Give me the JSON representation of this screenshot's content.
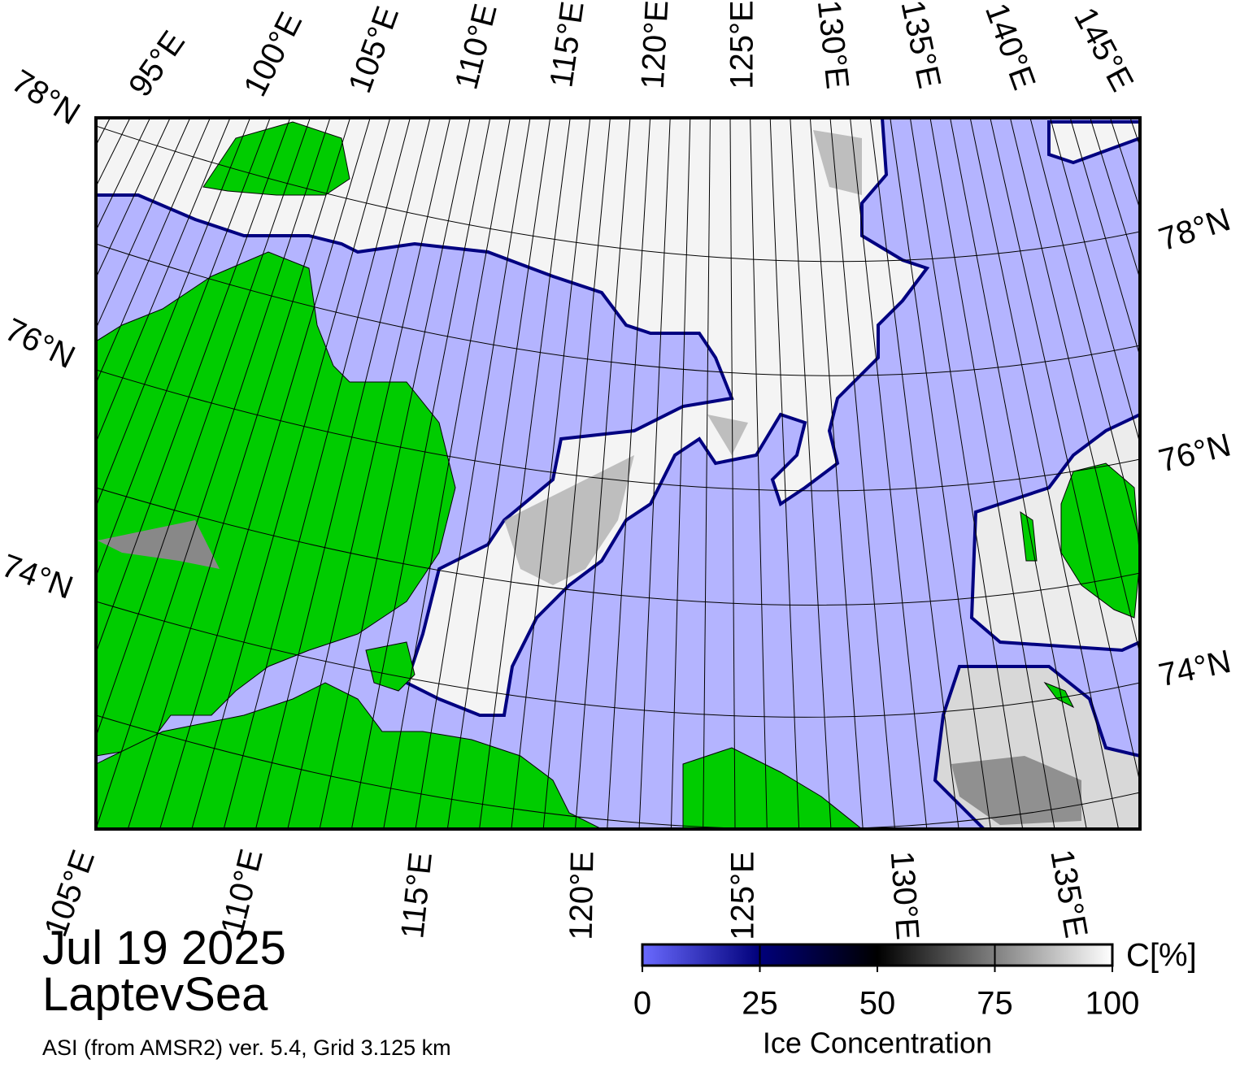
{
  "map": {
    "top_labels": [
      "95°E",
      "100°E",
      "105°E",
      "110°E",
      "115°E",
      "120°E",
      "125°E",
      "130°E",
      "135°E",
      "140°E",
      "145°E"
    ],
    "bottom_labels": [
      "105°E",
      "110°E",
      "115°E",
      "120°E",
      "125°E",
      "130°E",
      "135°E"
    ],
    "left_labels": [
      "78°N",
      "76°N",
      "74°N"
    ],
    "right_labels": [
      "78°N",
      "76°N",
      "74°N"
    ]
  },
  "date": "Jul 19 2025",
  "region": "LaptevSea",
  "source": "ASI (from AMSR2) ver. 5.4,  Grid 3.125 km",
  "colorbar": {
    "label": "Ice Concentration",
    "unit": "C[%]",
    "lim": [
      0,
      100
    ],
    "ticks": [
      0,
      25,
      50,
      75,
      100
    ],
    "colors": [
      "#6a6aff",
      "#00007a",
      "#000000",
      "#808080",
      "#ffffff"
    ]
  }
}
